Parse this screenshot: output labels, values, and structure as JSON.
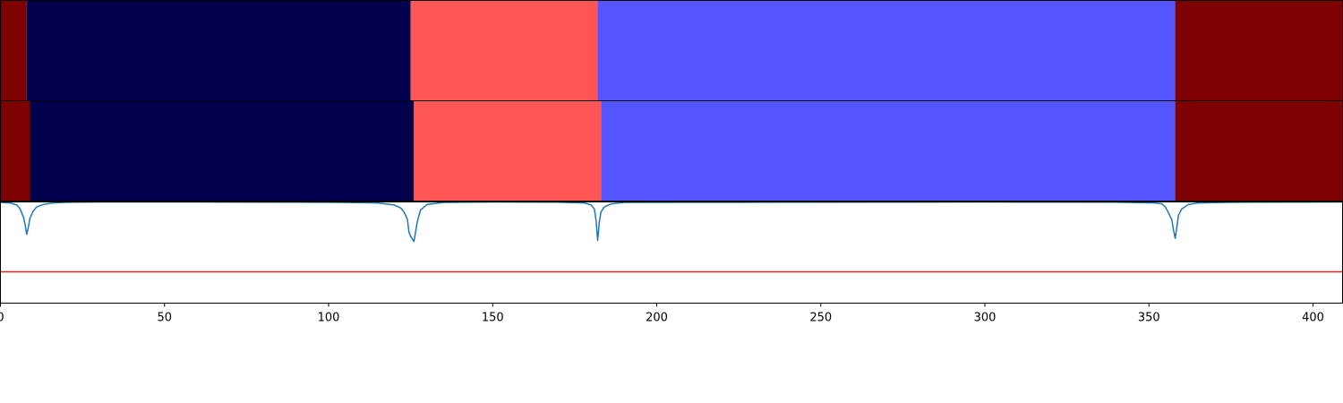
{
  "chart_data": {
    "type": "segmentation-timeline",
    "xlim": [
      0,
      409
    ],
    "x_ticks": [
      0,
      50,
      100,
      150,
      200,
      250,
      300,
      350,
      400
    ],
    "x_tick_labels": [
      "0",
      "50",
      "100",
      "150",
      "200",
      "250",
      "300",
      "350",
      "400"
    ],
    "rows": [
      {
        "segments": [
          {
            "start": 0,
            "end": 8,
            "color": "#7f0000"
          },
          {
            "start": 8,
            "end": 125,
            "color": "#00004c"
          },
          {
            "start": 125,
            "end": 182,
            "color": "#ff5555"
          },
          {
            "start": 182,
            "end": 358,
            "color": "#5555ff"
          },
          {
            "start": 358,
            "end": 409,
            "color": "#7f0000"
          }
        ]
      },
      {
        "segments": [
          {
            "start": 0,
            "end": 9,
            "color": "#7f0000"
          },
          {
            "start": 9,
            "end": 126,
            "color": "#00004c"
          },
          {
            "start": 126,
            "end": 183,
            "color": "#ff5555"
          },
          {
            "start": 183,
            "end": 358,
            "color": "#5555ff"
          },
          {
            "start": 358,
            "end": 409,
            "color": "#7f0000"
          }
        ]
      }
    ],
    "signal": {
      "color": "#1f77b4",
      "ylim": [
        0,
        1
      ],
      "x": [
        0,
        3,
        5,
        6,
        7,
        7.5,
        8,
        8.5,
        9,
        10,
        11,
        13,
        16,
        20,
        30,
        60,
        100,
        115,
        120,
        122,
        123,
        124,
        124.5,
        125,
        126,
        126.5,
        127,
        128,
        130,
        135,
        150,
        170,
        178,
        180,
        181,
        181.5,
        182,
        182.5,
        183,
        184,
        186,
        190,
        220,
        300,
        340,
        352,
        354,
        355,
        356,
        357,
        357.5,
        358,
        358.5,
        359,
        360,
        362,
        365,
        375,
        409
      ],
      "y": [
        0.995,
        0.99,
        0.97,
        0.93,
        0.85,
        0.78,
        0.68,
        0.75,
        0.84,
        0.91,
        0.95,
        0.975,
        0.99,
        0.997,
        1.0,
        1.0,
        0.997,
        0.99,
        0.97,
        0.94,
        0.9,
        0.83,
        0.7,
        0.66,
        0.61,
        0.7,
        0.8,
        0.92,
        0.975,
        0.995,
        1.0,
        0.998,
        0.99,
        0.97,
        0.93,
        0.82,
        0.62,
        0.8,
        0.9,
        0.95,
        0.98,
        0.995,
        0.997,
        1.0,
        0.998,
        0.99,
        0.98,
        0.95,
        0.89,
        0.82,
        0.72,
        0.64,
        0.75,
        0.87,
        0.93,
        0.975,
        0.99,
        0.997,
        1.0
      ]
    },
    "threshold": {
      "value": 0.31,
      "color": "#d62728"
    }
  }
}
